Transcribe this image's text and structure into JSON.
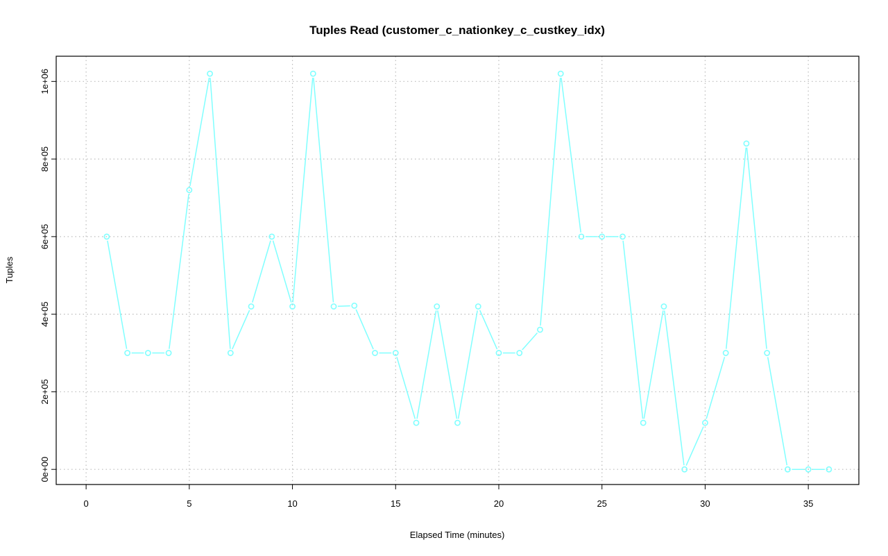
{
  "chart_data": {
    "type": "line",
    "title": "Tuples Read (customer_c_nationkey_c_custkey_idx)",
    "xlabel": "Elapsed Time (minutes)",
    "ylabel": "Tuples",
    "xlim": [
      -1.45,
      37.45
    ],
    "ylim": [
      -39000,
      1065000
    ],
    "xticks": [
      0,
      5,
      10,
      15,
      20,
      25,
      30,
      35
    ],
    "xtick_labels": [
      "0",
      "5",
      "10",
      "15",
      "20",
      "25",
      "30",
      "35"
    ],
    "yticks": [
      0,
      200000,
      400000,
      600000,
      800000,
      1000000
    ],
    "ytick_labels": [
      "0e+00",
      "2e+05",
      "4e+05",
      "6e+05",
      "8e+05",
      "1e+06"
    ],
    "grid": true,
    "series": [
      {
        "name": "Tuples Read",
        "color": "#80ffff",
        "x": [
          1,
          2,
          3,
          4,
          5,
          6,
          7,
          8,
          9,
          10,
          11,
          12,
          13,
          14,
          15,
          16,
          17,
          18,
          19,
          20,
          21,
          22,
          23,
          24,
          25,
          26,
          27,
          28,
          29,
          30,
          31,
          32,
          33,
          34,
          35,
          36
        ],
        "y": [
          600000,
          300000,
          300000,
          300000,
          720000,
          1020000,
          300000,
          420000,
          600000,
          420000,
          1020000,
          420000,
          422000,
          300000,
          300000,
          120000,
          420000,
          120000,
          420000,
          300000,
          300000,
          360000,
          1020000,
          600000,
          600000,
          600000,
          120000,
          420000,
          0,
          120000,
          300000,
          840000,
          300000,
          0,
          0,
          0
        ]
      }
    ]
  }
}
